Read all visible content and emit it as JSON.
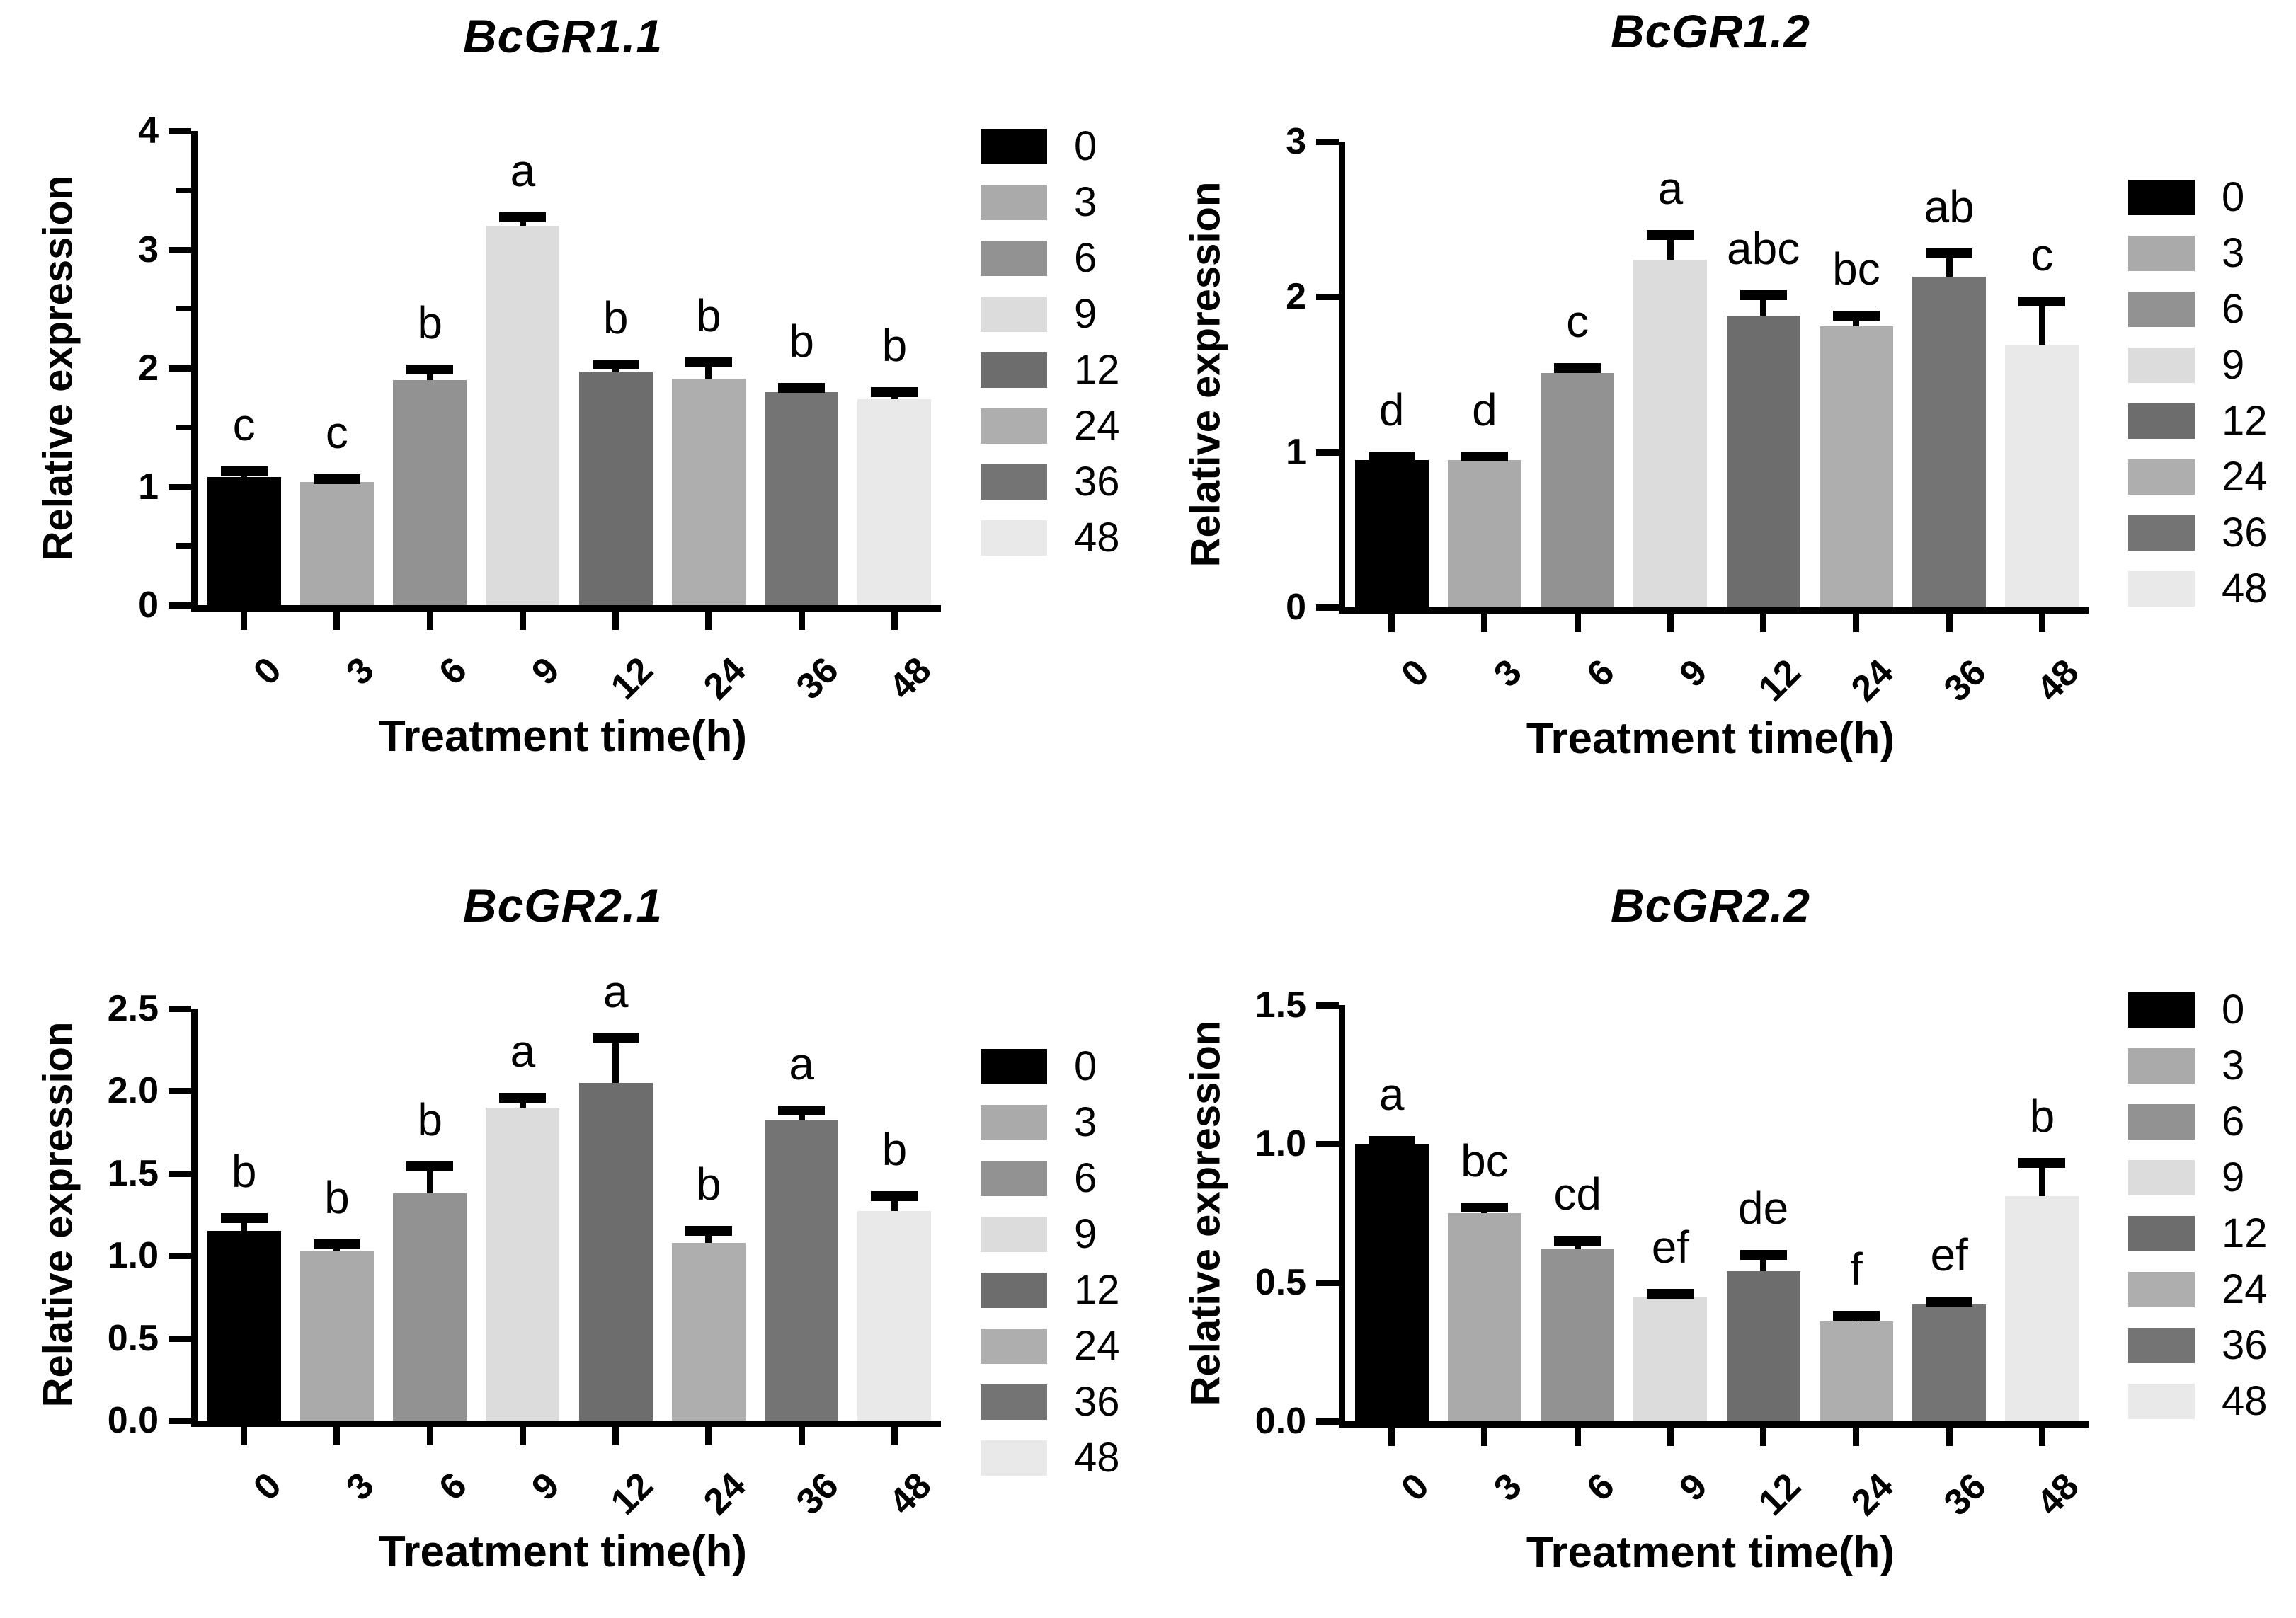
{
  "style": {
    "background": "#ffffff",
    "axis_color": "#000000",
    "bar_colors": [
      "#000000",
      "#aaaaaa",
      "#929292",
      "#dcdcdc",
      "#6d6d6d",
      "#aeaeae",
      "#747474",
      "#e9e9e9"
    ]
  },
  "legend": {
    "labels": [
      "0",
      "3",
      "6",
      "9",
      "12",
      "24",
      "36",
      "48"
    ],
    "position": "right"
  },
  "chart_data": [
    {
      "type": "bar",
      "title": "BcGR1.1",
      "xlabel": "Treatment time(h)",
      "ylabel": "Relative expression",
      "categories": [
        "0",
        "3",
        "6",
        "9",
        "12",
        "24",
        "36",
        "48"
      ],
      "values": [
        1.08,
        1.04,
        1.9,
        3.2,
        1.97,
        1.91,
        1.8,
        1.74
      ],
      "errors": [
        0.05,
        0.02,
        0.09,
        0.07,
        0.06,
        0.14,
        0.03,
        0.06
      ],
      "sig_letters": [
        "c",
        "c",
        "b",
        "a",
        "b",
        "b",
        "b",
        "b"
      ],
      "ylim": [
        0,
        4
      ],
      "ytick_labels": [
        "0",
        "1",
        "2",
        "3",
        "4"
      ],
      "minor_yticks": [
        0.5,
        1.5,
        2.5,
        3.5
      ],
      "grid": false,
      "legend_position": "right"
    },
    {
      "type": "bar",
      "title": "BcGR1.2",
      "xlabel": "Treatment time(h)",
      "ylabel": "Relative expression",
      "categories": [
        "0",
        "3",
        "6",
        "9",
        "12",
        "24",
        "36",
        "48"
      ],
      "values": [
        0.95,
        0.95,
        1.51,
        2.24,
        1.88,
        1.81,
        2.13,
        1.69
      ],
      "errors": [
        0.02,
        0.02,
        0.03,
        0.16,
        0.13,
        0.07,
        0.15,
        0.28
      ],
      "sig_letters": [
        "d",
        "d",
        "c",
        "a",
        "abc",
        "bc",
        "ab",
        "c"
      ],
      "ylim": [
        0,
        3
      ],
      "ytick_labels": [
        "0",
        "1",
        "2",
        "3"
      ],
      "minor_yticks": [],
      "grid": false,
      "legend_position": "right"
    },
    {
      "type": "bar",
      "title": "BcGR2.1",
      "xlabel": "Treatment time(h)",
      "ylabel": "Relative expression",
      "categories": [
        "0",
        "3",
        "6",
        "9",
        "12",
        "24",
        "36",
        "48"
      ],
      "values": [
        1.15,
        1.03,
        1.38,
        1.9,
        2.05,
        1.08,
        1.82,
        1.27
      ],
      "errors": [
        0.08,
        0.04,
        0.16,
        0.06,
        0.27,
        0.07,
        0.06,
        0.09
      ],
      "sig_letters": [
        "b",
        "b",
        "b",
        "a",
        "a",
        "b",
        "a",
        "b"
      ],
      "ylim": [
        0,
        2.5
      ],
      "ytick_labels": [
        "0.0",
        "0.5",
        "1.0",
        "1.5",
        "2.0",
        "2.5"
      ],
      "minor_yticks": [],
      "grid": false,
      "legend_position": "right"
    },
    {
      "type": "bar",
      "title": "BcGR2.2",
      "xlabel": "Treatment time(h)",
      "ylabel": "Relative expression",
      "categories": [
        "0",
        "3",
        "6",
        "9",
        "12",
        "24",
        "36",
        "48"
      ],
      "values": [
        1.0,
        0.75,
        0.62,
        0.45,
        0.54,
        0.36,
        0.42,
        0.81
      ],
      "errors": [
        0.01,
        0.02,
        0.03,
        0.01,
        0.06,
        0.02,
        0.01,
        0.12
      ],
      "sig_letters": [
        "a",
        "bc",
        "cd",
        "ef",
        "de",
        "f",
        "ef",
        "b"
      ],
      "ylim": [
        0,
        1.5
      ],
      "ytick_labels": [
        "0.0",
        "0.5",
        "1.0",
        "1.5"
      ],
      "minor_yticks": [],
      "grid": false,
      "legend_position": "right"
    }
  ]
}
